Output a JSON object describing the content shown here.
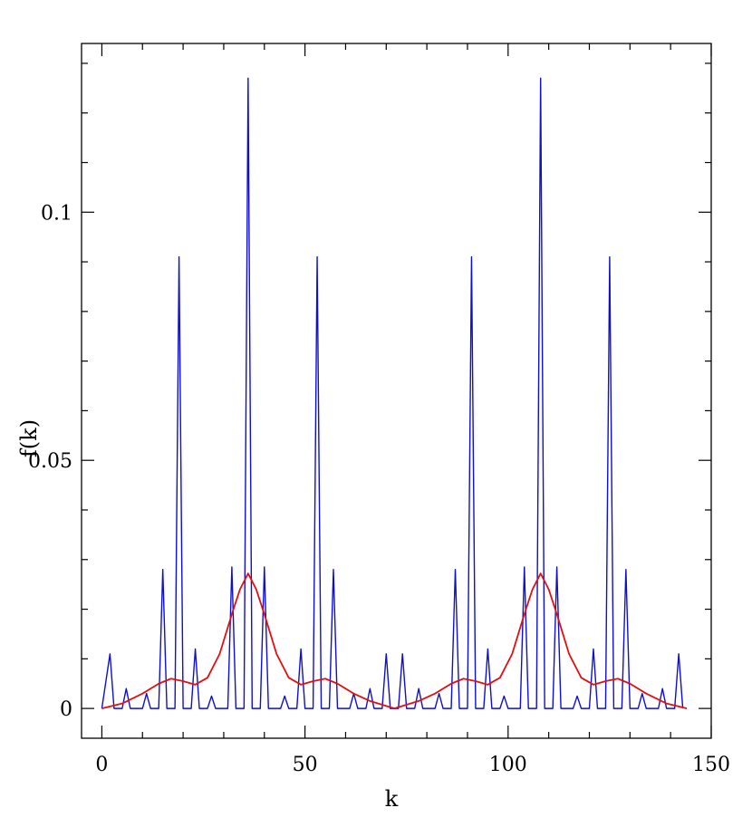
{
  "chart_data": {
    "type": "line",
    "title": "",
    "xlabel": "k",
    "ylabel": "f(k)",
    "xlim": [
      -5,
      150
    ],
    "ylim": [
      -0.006,
      0.134
    ],
    "x_ticks": [
      0,
      50,
      100,
      150
    ],
    "x_tick_labels": [
      "0",
      "50",
      "100",
      "150"
    ],
    "y_ticks": [
      0,
      0.05,
      0.1
    ],
    "y_tick_labels": [
      "0",
      "0.05",
      "0.1"
    ],
    "x_minor_step": 10,
    "y_minor_step": 0.01,
    "grid": false,
    "legend": "none",
    "series": [
      {
        "color": "#1010c8",
        "style": "spike-line",
        "values": [
          {
            "x": 0,
            "y": 0
          },
          {
            "x": 2,
            "y": 0.011
          },
          {
            "x": 3,
            "y": 0
          },
          {
            "x": 5,
            "y": 0
          },
          {
            "x": 6,
            "y": 0.004
          },
          {
            "x": 7,
            "y": 0
          },
          {
            "x": 10,
            "y": 0
          },
          {
            "x": 11,
            "y": 0.003
          },
          {
            "x": 12,
            "y": 0
          },
          {
            "x": 14,
            "y": 0
          },
          {
            "x": 15,
            "y": 0.028
          },
          {
            "x": 16,
            "y": 0
          },
          {
            "x": 18,
            "y": 0
          },
          {
            "x": 19,
            "y": 0.091
          },
          {
            "x": 20,
            "y": 0
          },
          {
            "x": 22,
            "y": 0
          },
          {
            "x": 23,
            "y": 0.012
          },
          {
            "x": 24,
            "y": 0
          },
          {
            "x": 26,
            "y": 0
          },
          {
            "x": 27,
            "y": 0.0025
          },
          {
            "x": 28,
            "y": 0
          },
          {
            "x": 31,
            "y": 0
          },
          {
            "x": 32,
            "y": 0.0285
          },
          {
            "x": 33,
            "y": 0
          },
          {
            "x": 35,
            "y": 0
          },
          {
            "x": 36,
            "y": 0.127
          },
          {
            "x": 37,
            "y": 0
          },
          {
            "x": 39,
            "y": 0
          },
          {
            "x": 40,
            "y": 0.0285
          },
          {
            "x": 41,
            "y": 0
          },
          {
            "x": 44,
            "y": 0
          },
          {
            "x": 45,
            "y": 0.0025
          },
          {
            "x": 46,
            "y": 0
          },
          {
            "x": 48,
            "y": 0
          },
          {
            "x": 49,
            "y": 0.012
          },
          {
            "x": 50,
            "y": 0
          },
          {
            "x": 52,
            "y": 0
          },
          {
            "x": 53,
            "y": 0.091
          },
          {
            "x": 54,
            "y": 0
          },
          {
            "x": 56,
            "y": 0
          },
          {
            "x": 57,
            "y": 0.028
          },
          {
            "x": 58,
            "y": 0
          },
          {
            "x": 61,
            "y": 0
          },
          {
            "x": 62,
            "y": 0.003
          },
          {
            "x": 63,
            "y": 0
          },
          {
            "x": 65,
            "y": 0
          },
          {
            "x": 66,
            "y": 0.004
          },
          {
            "x": 67,
            "y": 0
          },
          {
            "x": 69,
            "y": 0
          },
          {
            "x": 70,
            "y": 0.011
          },
          {
            "x": 71,
            "y": 0
          },
          {
            "x": 73,
            "y": 0
          },
          {
            "x": 74,
            "y": 0.011
          },
          {
            "x": 75,
            "y": 0
          },
          {
            "x": 77,
            "y": 0
          },
          {
            "x": 78,
            "y": 0.004
          },
          {
            "x": 79,
            "y": 0
          },
          {
            "x": 82,
            "y": 0
          },
          {
            "x": 83,
            "y": 0.003
          },
          {
            "x": 84,
            "y": 0
          },
          {
            "x": 86,
            "y": 0
          },
          {
            "x": 87,
            "y": 0.028
          },
          {
            "x": 88,
            "y": 0
          },
          {
            "x": 90,
            "y": 0
          },
          {
            "x": 91,
            "y": 0.091
          },
          {
            "x": 92,
            "y": 0
          },
          {
            "x": 94,
            "y": 0
          },
          {
            "x": 95,
            "y": 0.012
          },
          {
            "x": 96,
            "y": 0
          },
          {
            "x": 98,
            "y": 0
          },
          {
            "x": 99,
            "y": 0.0025
          },
          {
            "x": 100,
            "y": 0
          },
          {
            "x": 103,
            "y": 0
          },
          {
            "x": 104,
            "y": 0.0285
          },
          {
            "x": 105,
            "y": 0
          },
          {
            "x": 107,
            "y": 0
          },
          {
            "x": 108,
            "y": 0.127
          },
          {
            "x": 109,
            "y": 0
          },
          {
            "x": 111,
            "y": 0
          },
          {
            "x": 112,
            "y": 0.0285
          },
          {
            "x": 113,
            "y": 0
          },
          {
            "x": 116,
            "y": 0
          },
          {
            "x": 117,
            "y": 0.0025
          },
          {
            "x": 118,
            "y": 0
          },
          {
            "x": 120,
            "y": 0
          },
          {
            "x": 121,
            "y": 0.012
          },
          {
            "x": 122,
            "y": 0
          },
          {
            "x": 124,
            "y": 0
          },
          {
            "x": 125,
            "y": 0.091
          },
          {
            "x": 126,
            "y": 0
          },
          {
            "x": 128,
            "y": 0
          },
          {
            "x": 129,
            "y": 0.028
          },
          {
            "x": 130,
            "y": 0
          },
          {
            "x": 132,
            "y": 0
          },
          {
            "x": 133,
            "y": 0.003
          },
          {
            "x": 134,
            "y": 0
          },
          {
            "x": 137,
            "y": 0
          },
          {
            "x": 138,
            "y": 0.004
          },
          {
            "x": 139,
            "y": 0
          },
          {
            "x": 141,
            "y": 0
          },
          {
            "x": 142,
            "y": 0.011
          },
          {
            "x": 143,
            "y": 0
          }
        ]
      },
      {
        "color": "#e01010",
        "style": "smooth",
        "values": [
          {
            "x": 0,
            "y": 0.0
          },
          {
            "x": 5,
            "y": 0.001
          },
          {
            "x": 10,
            "y": 0.003
          },
          {
            "x": 14,
            "y": 0.005
          },
          {
            "x": 17,
            "y": 0.006
          },
          {
            "x": 20,
            "y": 0.0055
          },
          {
            "x": 23,
            "y": 0.0048
          },
          {
            "x": 26,
            "y": 0.0062
          },
          {
            "x": 29,
            "y": 0.011
          },
          {
            "x": 32,
            "y": 0.019
          },
          {
            "x": 34,
            "y": 0.024
          },
          {
            "x": 36,
            "y": 0.0272
          },
          {
            "x": 38,
            "y": 0.024
          },
          {
            "x": 40,
            "y": 0.019
          },
          {
            "x": 43,
            "y": 0.011
          },
          {
            "x": 46,
            "y": 0.0062
          },
          {
            "x": 49,
            "y": 0.0048
          },
          {
            "x": 52,
            "y": 0.0055
          },
          {
            "x": 55,
            "y": 0.006
          },
          {
            "x": 58,
            "y": 0.005
          },
          {
            "x": 62,
            "y": 0.003
          },
          {
            "x": 66,
            "y": 0.0015
          },
          {
            "x": 70,
            "y": 0.0005
          },
          {
            "x": 72,
            "y": 0.0
          },
          {
            "x": 74,
            "y": 0.0005
          },
          {
            "x": 78,
            "y": 0.0015
          },
          {
            "x": 82,
            "y": 0.003
          },
          {
            "x": 86,
            "y": 0.005
          },
          {
            "x": 89,
            "y": 0.006
          },
          {
            "x": 92,
            "y": 0.0055
          },
          {
            "x": 95,
            "y": 0.0048
          },
          {
            "x": 98,
            "y": 0.0062
          },
          {
            "x": 101,
            "y": 0.011
          },
          {
            "x": 104,
            "y": 0.019
          },
          {
            "x": 106,
            "y": 0.024
          },
          {
            "x": 108,
            "y": 0.0272
          },
          {
            "x": 110,
            "y": 0.024
          },
          {
            "x": 112,
            "y": 0.019
          },
          {
            "x": 115,
            "y": 0.011
          },
          {
            "x": 118,
            "y": 0.0062
          },
          {
            "x": 121,
            "y": 0.0048
          },
          {
            "x": 124,
            "y": 0.0055
          },
          {
            "x": 127,
            "y": 0.006
          },
          {
            "x": 130,
            "y": 0.005
          },
          {
            "x": 134,
            "y": 0.003
          },
          {
            "x": 139,
            "y": 0.001
          },
          {
            "x": 144,
            "y": 0.0
          }
        ]
      }
    ]
  }
}
